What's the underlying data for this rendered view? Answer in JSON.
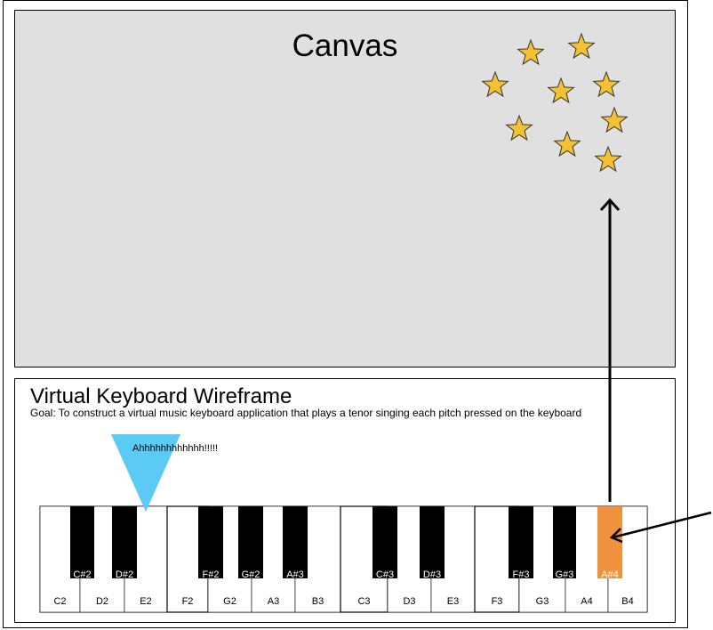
{
  "canvas": {
    "title": "Canvas"
  },
  "keyboard": {
    "title": "Virtual Keyboard Wireframe",
    "goal": "Goal: To construct a virtual music keyboard application that plays a tenor singing each pitch pressed on the keyboard",
    "speech": "Ahhhhhhhhhhhh!!!!!",
    "white_keys": [
      "C2",
      "D2",
      "E2",
      "F2",
      "G2",
      "A3",
      "B3",
      "C3",
      "D3",
      "E3",
      "F3",
      "G3",
      "A4",
      "B4"
    ],
    "black_keys": [
      "C#2",
      "D#2",
      "F#2",
      "G#2",
      "A#3",
      "C#3",
      "D#3",
      "F#3",
      "G#3",
      "A#4"
    ],
    "pressed_key": "A#4"
  },
  "colors": {
    "canvas_bg": "#e0e0e0",
    "star_fill": "#f4c133",
    "pressed_key": "#f0923d",
    "pointer_triangle": "#5bcbf5",
    "black_key": "#000000"
  }
}
